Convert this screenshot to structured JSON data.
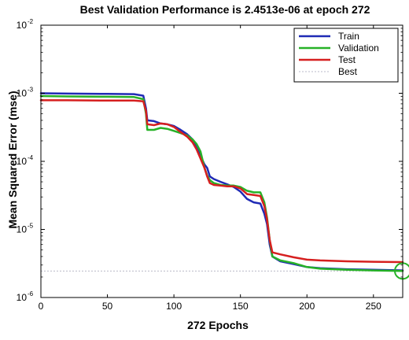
{
  "chart_data": {
    "type": "line",
    "title": "Best Validation Performance is 2.4513e-06 at epoch 272",
    "xlabel": "272 Epochs",
    "ylabel": "Mean Squared Error  (mse)",
    "xlim": [
      0,
      272
    ],
    "ylim": [
      1e-06,
      0.01
    ],
    "yscale": "log",
    "x_ticks": [
      0,
      50,
      100,
      150,
      200,
      250
    ],
    "y_ticks": [
      {
        "value": 0.01,
        "base": "10",
        "exp": "-2"
      },
      {
        "value": 0.001,
        "base": "10",
        "exp": "-3"
      },
      {
        "value": 0.0001,
        "base": "10",
        "exp": "-4"
      },
      {
        "value": 1e-05,
        "base": "10",
        "exp": "-5"
      },
      {
        "value": 1e-06,
        "base": "10",
        "exp": "-6"
      }
    ],
    "grid": false,
    "legend_position": "top-right",
    "series": [
      {
        "name": "Train",
        "color": "#1f2ab5",
        "points": [
          [
            0,
            0.001
          ],
          [
            20,
            0.00099
          ],
          [
            50,
            0.00098
          ],
          [
            70,
            0.00097
          ],
          [
            77,
            0.00092
          ],
          [
            79,
            0.0006
          ],
          [
            80,
            0.0004
          ],
          [
            85,
            0.00039
          ],
          [
            90,
            0.00036
          ],
          [
            95,
            0.00035
          ],
          [
            100,
            0.00033
          ],
          [
            105,
            0.00029
          ],
          [
            110,
            0.00025
          ],
          [
            114,
            0.00021
          ],
          [
            117,
            0.00016
          ],
          [
            120,
            0.00012
          ],
          [
            123,
            9e-05
          ],
          [
            125,
            8e-05
          ],
          [
            127,
            6e-05
          ],
          [
            130,
            5.5e-05
          ],
          [
            135,
            5e-05
          ],
          [
            140,
            4.6e-05
          ],
          [
            145,
            4.2e-05
          ],
          [
            150,
            3.6e-05
          ],
          [
            155,
            2.8e-05
          ],
          [
            160,
            2.5e-05
          ],
          [
            165,
            2.4e-05
          ],
          [
            168,
            1.7e-05
          ],
          [
            170,
            1.2e-05
          ],
          [
            172,
            6e-06
          ],
          [
            174,
            4e-06
          ],
          [
            180,
            3.4e-06
          ],
          [
            190,
            3.1e-06
          ],
          [
            200,
            2.8e-06
          ],
          [
            210,
            2.7e-06
          ],
          [
            230,
            2.6e-06
          ],
          [
            250,
            2.55e-06
          ],
          [
            272,
            2.5e-06
          ]
        ]
      },
      {
        "name": "Validation",
        "color": "#27b227",
        "points": [
          [
            0,
            0.00091
          ],
          [
            20,
            0.0009
          ],
          [
            50,
            0.00089
          ],
          [
            70,
            0.00088
          ],
          [
            77,
            0.00082
          ],
          [
            79,
            0.0005
          ],
          [
            80,
            0.00029
          ],
          [
            85,
            0.00029
          ],
          [
            90,
            0.00031
          ],
          [
            95,
            0.0003
          ],
          [
            100,
            0.00028
          ],
          [
            105,
            0.00026
          ],
          [
            110,
            0.00024
          ],
          [
            114,
            0.00021
          ],
          [
            117,
            0.00018
          ],
          [
            120,
            0.00014
          ],
          [
            123,
            8e-05
          ],
          [
            125,
            6.2e-05
          ],
          [
            127,
            5.3e-05
          ],
          [
            130,
            4.8e-05
          ],
          [
            135,
            4.5e-05
          ],
          [
            140,
            4.4e-05
          ],
          [
            145,
            4.4e-05
          ],
          [
            150,
            4.2e-05
          ],
          [
            155,
            3.7e-05
          ],
          [
            160,
            3.5e-05
          ],
          [
            165,
            3.5e-05
          ],
          [
            168,
            2.5e-05
          ],
          [
            170,
            1.5e-05
          ],
          [
            172,
            7e-06
          ],
          [
            174,
            4e-06
          ],
          [
            180,
            3.5e-06
          ],
          [
            190,
            3.2e-06
          ],
          [
            200,
            2.8e-06
          ],
          [
            210,
            2.65e-06
          ],
          [
            230,
            2.55e-06
          ],
          [
            250,
            2.5e-06
          ],
          [
            272,
            2.4513e-06
          ]
        ]
      },
      {
        "name": "Test",
        "color": "#d61f1f",
        "points": [
          [
            0,
            0.00079
          ],
          [
            20,
            0.00079
          ],
          [
            50,
            0.00078
          ],
          [
            70,
            0.00078
          ],
          [
            77,
            0.00076
          ],
          [
            79,
            0.00055
          ],
          [
            80,
            0.00035
          ],
          [
            85,
            0.00034
          ],
          [
            90,
            0.00036
          ],
          [
            95,
            0.00035
          ],
          [
            100,
            0.00032
          ],
          [
            105,
            0.00027
          ],
          [
            110,
            0.00023
          ],
          [
            114,
            0.00019
          ],
          [
            117,
            0.00015
          ],
          [
            120,
            0.00011
          ],
          [
            123,
            8e-05
          ],
          [
            125,
            6e-05
          ],
          [
            127,
            4.8e-05
          ],
          [
            130,
            4.5e-05
          ],
          [
            135,
            4.4e-05
          ],
          [
            140,
            4.3e-05
          ],
          [
            145,
            4.3e-05
          ],
          [
            150,
            4e-05
          ],
          [
            155,
            3.3e-05
          ],
          [
            160,
            3.2e-05
          ],
          [
            165,
            3.1e-05
          ],
          [
            168,
            2.2e-05
          ],
          [
            170,
            1.4e-05
          ],
          [
            172,
            7e-06
          ],
          [
            174,
            4.6e-06
          ],
          [
            180,
            4.3e-06
          ],
          [
            190,
            3.9e-06
          ],
          [
            200,
            3.6e-06
          ],
          [
            210,
            3.5e-06
          ],
          [
            230,
            3.4e-06
          ],
          [
            250,
            3.35e-06
          ],
          [
            272,
            3.3e-06
          ]
        ]
      }
    ],
    "best_line": {
      "name": "Best",
      "value": 2.4513e-06,
      "color": "#b9b9c8",
      "style": "dotted"
    },
    "best_marker": {
      "x": 272,
      "y": 2.4513e-06,
      "color": "#27b227",
      "shape": "circle"
    }
  }
}
